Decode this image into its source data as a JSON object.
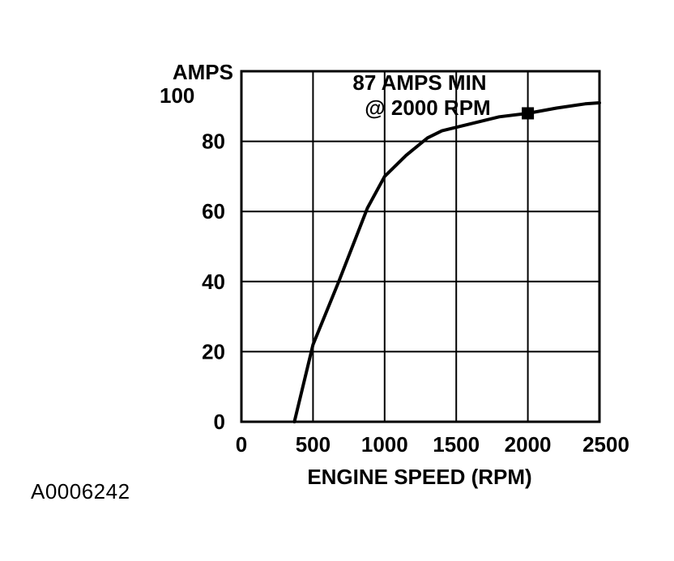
{
  "figure_id": "A0006242",
  "chart_data": {
    "type": "line",
    "title": "",
    "xlabel": "ENGINE SPEED (RPM)",
    "ylabel": "AMPS",
    "xlim": [
      0,
      2500
    ],
    "ylim": [
      0,
      100
    ],
    "x_ticks": [
      0,
      500,
      1000,
      1500,
      2000,
      2500
    ],
    "y_ticks": [
      0,
      20,
      40,
      60,
      80,
      100
    ],
    "grid": true,
    "series": [
      {
        "x": [
          370,
          500,
          680,
          880,
          1000,
          1150,
          1300,
          1400,
          1600,
          1800,
          2000,
          2200,
          2400,
          2500
        ],
        "y": [
          0,
          22,
          40,
          61,
          70,
          76,
          81,
          83,
          85,
          87,
          88,
          89.5,
          90.7,
          91
        ]
      }
    ],
    "annotations": [
      {
        "text_lines": [
          "87 AMPS MIN",
          "@ 2000 RPM"
        ],
        "marker": "square",
        "x": 2000,
        "y": 88
      }
    ]
  }
}
